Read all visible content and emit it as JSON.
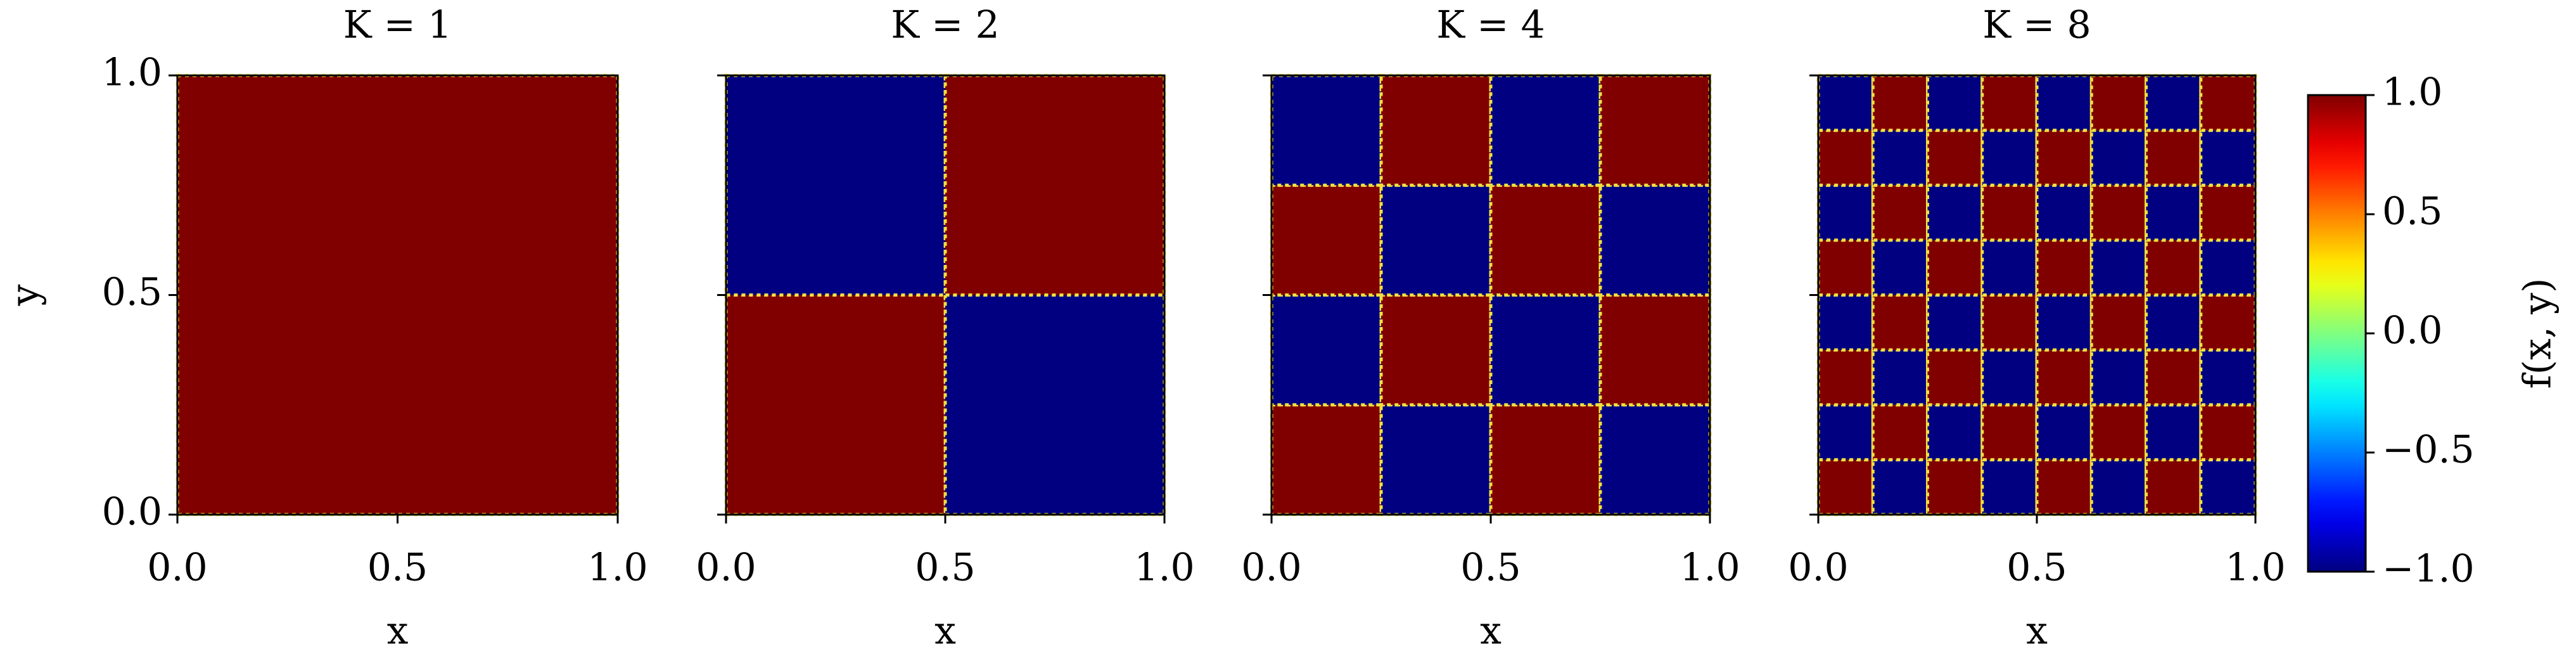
{
  "chart_data": [
    {
      "type": "heatmap",
      "title": "K = 1",
      "x_label": "x",
      "y_label": "y",
      "xlim": [
        0,
        1
      ],
      "ylim": [
        0,
        1
      ],
      "xticks": [
        {
          "value": 0,
          "label": "0.0"
        },
        {
          "value": 0.5,
          "label": "0.5"
        },
        {
          "value": 1,
          "label": "1.0"
        }
      ],
      "yticks": [
        {
          "value": 0,
          "label": "0.0"
        },
        {
          "value": 0.5,
          "label": "0.5"
        },
        {
          "value": 1,
          "label": "1.0"
        }
      ],
      "z": [
        [
          1
        ]
      ]
    },
    {
      "type": "heatmap",
      "title": "K = 2",
      "x_label": "x",
      "xlim": [
        0,
        1
      ],
      "ylim": [
        0,
        1
      ],
      "xticks": [
        {
          "value": 0,
          "label": "0.0"
        },
        {
          "value": 0.5,
          "label": "0.5"
        },
        {
          "value": 1,
          "label": "1.0"
        }
      ],
      "yticks": [
        0,
        0.5,
        1
      ],
      "z": [
        [
          1,
          -1
        ],
        [
          -1,
          1
        ]
      ]
    },
    {
      "type": "heatmap",
      "title": "K = 4",
      "x_label": "x",
      "xlim": [
        0,
        1
      ],
      "ylim": [
        0,
        1
      ],
      "xticks": [
        {
          "value": 0,
          "label": "0.0"
        },
        {
          "value": 0.5,
          "label": "0.5"
        },
        {
          "value": 1,
          "label": "1.0"
        }
      ],
      "yticks": [
        0,
        0.5,
        1
      ],
      "z": [
        [
          1,
          -1,
          1,
          -1
        ],
        [
          -1,
          1,
          -1,
          1
        ],
        [
          1,
          -1,
          1,
          -1
        ],
        [
          -1,
          1,
          -1,
          1
        ]
      ]
    },
    {
      "type": "heatmap",
      "title": "K = 8",
      "x_label": "x",
      "xlim": [
        0,
        1
      ],
      "ylim": [
        0,
        1
      ],
      "xticks": [
        {
          "value": 0,
          "label": "0.0"
        },
        {
          "value": 0.5,
          "label": "0.5"
        },
        {
          "value": 1,
          "label": "1.0"
        }
      ],
      "yticks": [
        0,
        0.5,
        1
      ],
      "z": [
        [
          1,
          -1,
          1,
          -1,
          1,
          -1,
          1,
          -1
        ],
        [
          -1,
          1,
          -1,
          1,
          -1,
          1,
          -1,
          1
        ],
        [
          1,
          -1,
          1,
          -1,
          1,
          -1,
          1,
          -1
        ],
        [
          -1,
          1,
          -1,
          1,
          -1,
          1,
          -1,
          1
        ],
        [
          1,
          -1,
          1,
          -1,
          1,
          -1,
          1,
          -1
        ],
        [
          -1,
          1,
          -1,
          1,
          -1,
          1,
          -1,
          1
        ],
        [
          1,
          -1,
          1,
          -1,
          1,
          -1,
          1,
          -1
        ],
        [
          -1,
          1,
          -1,
          1,
          -1,
          1,
          -1,
          1
        ]
      ]
    },
    {
      "type": "colorbar",
      "label": "f(x, y)",
      "colormap": "jet",
      "clim": [
        -1,
        1
      ],
      "ticks": [
        {
          "value": -1,
          "label": "−1.0"
        },
        {
          "value": -0.5,
          "label": "−0.5"
        },
        {
          "value": 0,
          "label": "0.0"
        },
        {
          "value": 0.5,
          "label": "0.5"
        },
        {
          "value": 1,
          "label": "1.0"
        }
      ]
    }
  ]
}
